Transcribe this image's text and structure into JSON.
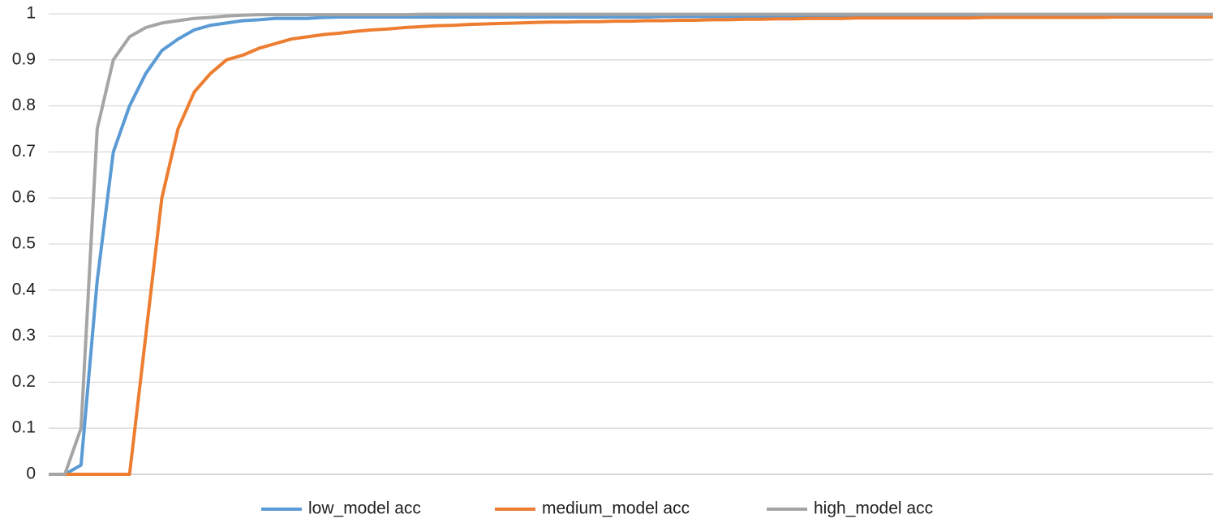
{
  "chart_data": {
    "type": "line",
    "ylim": [
      0,
      1
    ],
    "yticks": [
      0,
      0.1,
      0.2,
      0.3,
      0.4,
      0.5,
      0.6,
      0.7,
      0.8,
      0.9,
      1
    ],
    "grid": true,
    "legend": "bottom",
    "series": [
      {
        "name": "low_model acc",
        "color": "#5b9bd5",
        "values": [
          0,
          0,
          0.02,
          0.42,
          0.7,
          0.8,
          0.87,
          0.92,
          0.945,
          0.965,
          0.975,
          0.98,
          0.985,
          0.987,
          0.99,
          0.99,
          0.99,
          0.992,
          0.993,
          0.993,
          0.993,
          0.993,
          0.993,
          0.993,
          0.993,
          0.993,
          0.993,
          0.993,
          0.993,
          0.993,
          0.993,
          0.993,
          0.993,
          0.993,
          0.993,
          0.993,
          0.993,
          0.993,
          0.994,
          0.994,
          0.994,
          0.994,
          0.994,
          0.994,
          0.994,
          0.994,
          0.994,
          0.994,
          0.994,
          0.994,
          0.994,
          0.994,
          0.994,
          0.994,
          0.994,
          0.994,
          0.994,
          0.994,
          0.995,
          0.995,
          0.995,
          0.995,
          0.995,
          0.995,
          0.995,
          0.995,
          0.995,
          0.995,
          0.995,
          0.995,
          0.995,
          0.995,
          0.995
        ]
      },
      {
        "name": "medium_model acc",
        "color": "#ed7d31",
        "values": [
          0,
          0,
          0,
          0,
          0,
          0,
          0.3,
          0.6,
          0.75,
          0.83,
          0.87,
          0.9,
          0.91,
          0.925,
          0.935,
          0.945,
          0.95,
          0.955,
          0.958,
          0.962,
          0.965,
          0.967,
          0.97,
          0.972,
          0.974,
          0.975,
          0.977,
          0.978,
          0.979,
          0.98,
          0.981,
          0.982,
          0.982,
          0.983,
          0.983,
          0.984,
          0.984,
          0.985,
          0.985,
          0.986,
          0.986,
          0.987,
          0.987,
          0.988,
          0.988,
          0.989,
          0.989,
          0.99,
          0.99,
          0.99,
          0.991,
          0.991,
          0.991,
          0.991,
          0.991,
          0.991,
          0.991,
          0.991,
          0.992,
          0.992,
          0.992,
          0.992,
          0.992,
          0.992,
          0.992,
          0.992,
          0.993,
          0.993,
          0.993,
          0.993,
          0.993,
          0.993,
          0.993
        ]
      },
      {
        "name": "high_model acc",
        "color": "#a5a5a5",
        "values": [
          0,
          0,
          0.1,
          0.75,
          0.9,
          0.95,
          0.97,
          0.98,
          0.985,
          0.99,
          0.992,
          0.995,
          0.997,
          0.998,
          0.998,
          0.998,
          0.998,
          0.998,
          0.998,
          0.998,
          0.998,
          0.998,
          0.998,
          0.999,
          0.999,
          0.999,
          0.999,
          0.999,
          0.999,
          0.999,
          0.999,
          0.999,
          0.999,
          0.999,
          0.999,
          0.999,
          0.999,
          0.999,
          0.999,
          0.999,
          0.999,
          0.999,
          0.999,
          0.999,
          0.999,
          0.999,
          0.999,
          0.999,
          0.999,
          0.999,
          0.999,
          0.999,
          0.999,
          0.999,
          0.999,
          0.999,
          0.999,
          0.999,
          0.999,
          0.999,
          0.999,
          0.999,
          0.999,
          0.999,
          0.999,
          0.999,
          0.999,
          0.999,
          0.999,
          0.999,
          0.999,
          0.999,
          0.999
        ]
      }
    ]
  }
}
